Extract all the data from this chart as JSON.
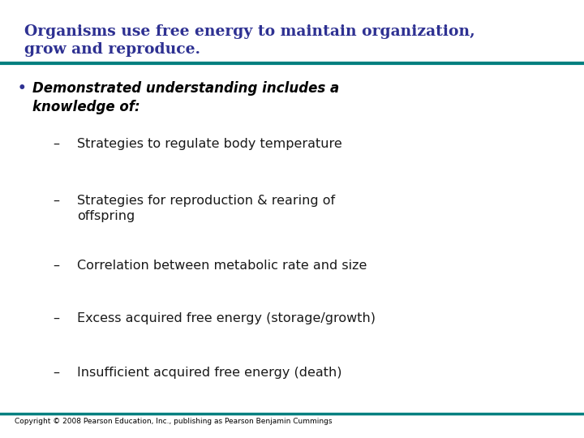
{
  "title_line1": "Organisms use free energy to maintain organization,",
  "title_line2": "grow and reproduce.",
  "title_color": "#2E3192",
  "title_fontsize": 13.5,
  "teal_color": "#008080",
  "bg_color": "#FFFFFF",
  "bullet_dot_color": "#2E3192",
  "bullet_fontsize": 12,
  "sub_items": [
    "Strategies to regulate body temperature",
    "Strategies for reproduction & rearing of\noffspring",
    "Correlation between metabolic rate and size",
    "Excess acquired free energy (storage/growth)",
    "Insufficient acquired free energy (death)"
  ],
  "sub_fontsize": 11.5,
  "sub_color": "#1a1a1a",
  "copyright": "Copyright © 2008 Pearson Education, Inc., publishing as Pearson Benjamin Cummings",
  "copyright_fontsize": 6.5,
  "copyright_color": "#000000"
}
